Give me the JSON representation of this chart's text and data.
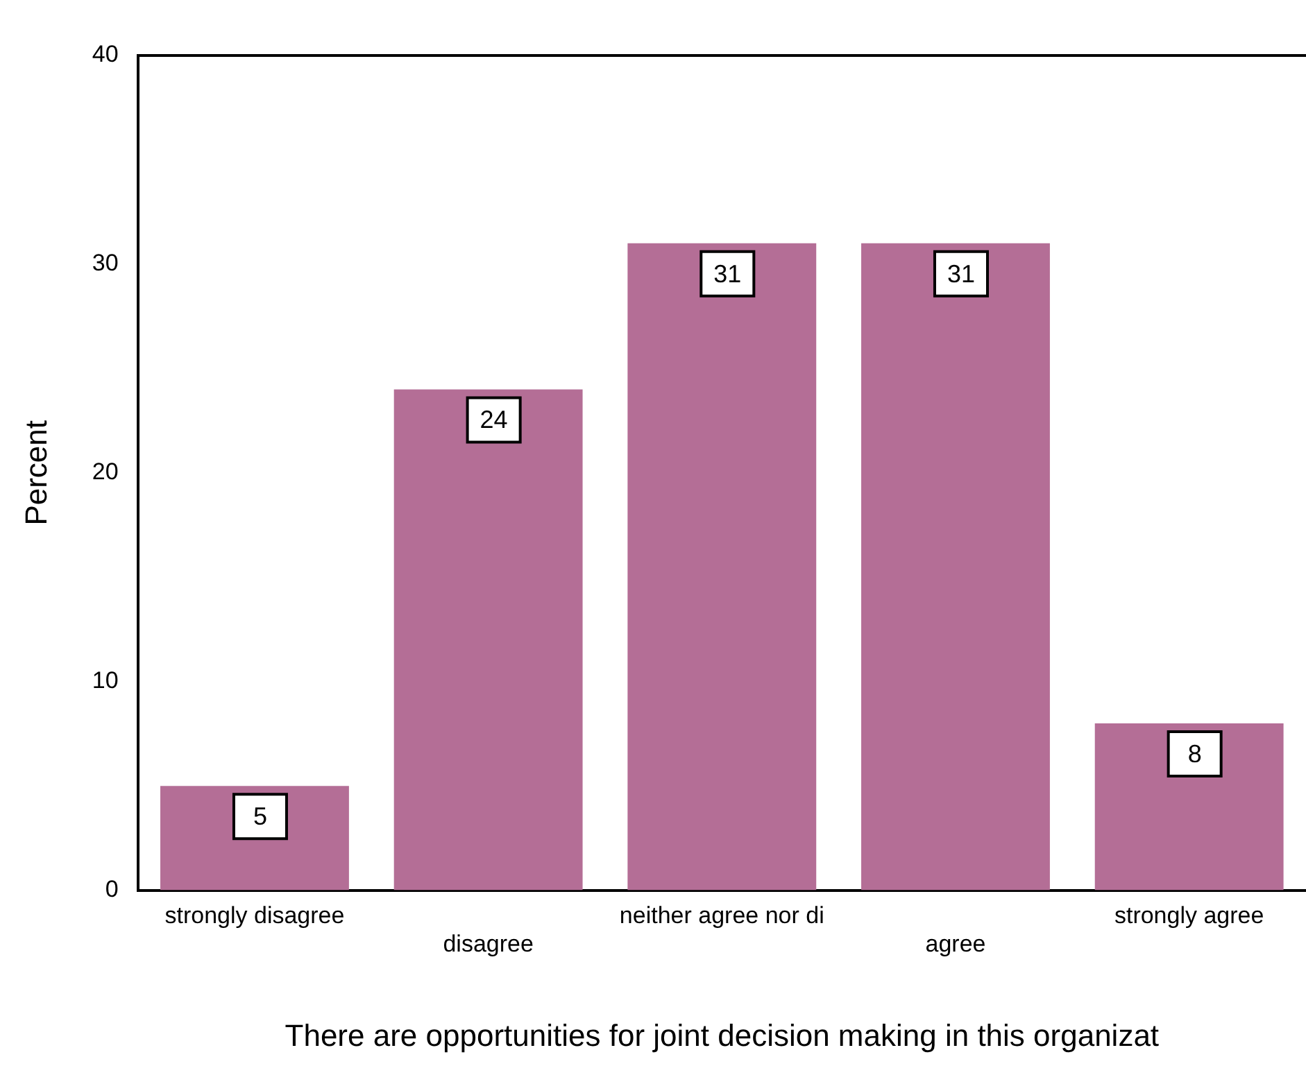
{
  "chart_data": {
    "type": "bar",
    "xlabel": "There are opportunities for joint decision making in this organizat",
    "ylabel": "Percent",
    "categories": [
      "strongly disagree",
      "disagree",
      "neither agree nor di",
      "agree",
      "strongly agree"
    ],
    "values": [
      5,
      24,
      31,
      31,
      8
    ],
    "color": "#b46e96",
    "ylim": [
      0,
      40
    ],
    "yticks": [
      0,
      10,
      20,
      30,
      40
    ],
    "grid": false,
    "legend": false,
    "data_labels": true
  }
}
